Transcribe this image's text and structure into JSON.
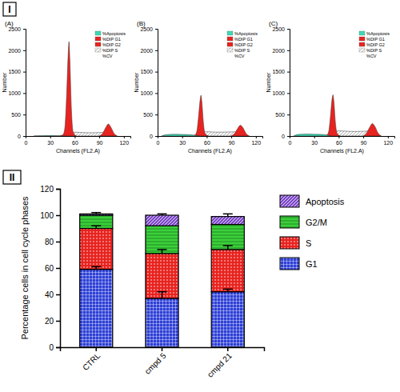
{
  "panel_labels": [
    "I",
    "II"
  ],
  "chart_data": [
    {
      "type": "area",
      "title": "(A)",
      "xlabel": "Channels (FL2.A)",
      "ylabel": "Number",
      "xlim": [
        0,
        128
      ],
      "xticks": [
        0,
        30,
        60,
        90,
        120
      ],
      "ylim": [
        0,
        2500
      ],
      "yticks": [
        0,
        500,
        1000,
        1500,
        2000,
        2500
      ],
      "grid": false,
      "legend": "upper right",
      "series": [
        {
          "name": "%Apoptosis",
          "color": "#3ddbb5",
          "x": [
            10,
            20,
            30,
            40,
            45
          ],
          "values": [
            0,
            5,
            8,
            6,
            0
          ]
        },
        {
          "name": "%DIP G1",
          "color": "#e8231f",
          "x": [
            42,
            46,
            48,
            50,
            52,
            53,
            54,
            56,
            58,
            62
          ],
          "values": [
            0,
            40,
            200,
            900,
            1900,
            2200,
            1800,
            600,
            100,
            0
          ]
        },
        {
          "name": "%DIP G2",
          "color": "#e8231f",
          "x": [
            90,
            94,
            98,
            101,
            104,
            108,
            112
          ],
          "values": [
            0,
            60,
            200,
            280,
            210,
            60,
            0
          ]
        },
        {
          "name": "%DIP S",
          "color": "#8a8a8a",
          "x": [
            52,
            56,
            60,
            70,
            80,
            90,
            100,
            104
          ],
          "values": [
            0,
            70,
            90,
            80,
            75,
            80,
            90,
            0
          ]
        },
        {
          "name": "%CV"
        }
      ]
    },
    {
      "type": "area",
      "title": "(B)",
      "xlabel": "Channels (FL2.A)",
      "ylabel": "Number",
      "xlim": [
        0,
        128
      ],
      "xticks": [
        0,
        30,
        60,
        90,
        120
      ],
      "ylim": [
        0,
        2500
      ],
      "yticks": [
        0,
        500,
        1000,
        1500,
        2000,
        2500
      ],
      "grid": false,
      "legend": "upper right",
      "series": [
        {
          "name": "%Apoptosis",
          "color": "#3ddbb5",
          "x": [
            5,
            10,
            20,
            30,
            40,
            45,
            50
          ],
          "values": [
            0,
            30,
            40,
            35,
            30,
            20,
            0
          ]
        },
        {
          "name": "%DIP G1",
          "color": "#e8231f",
          "x": [
            42,
            46,
            48,
            50,
            52,
            53,
            54,
            56,
            58,
            62
          ],
          "values": [
            0,
            30,
            120,
            450,
            850,
            950,
            800,
            300,
            60,
            0
          ]
        },
        {
          "name": "%DIP G2",
          "color": "#e8231f",
          "x": [
            90,
            94,
            98,
            101,
            104,
            108,
            112
          ],
          "values": [
            0,
            60,
            180,
            250,
            200,
            60,
            0
          ]
        },
        {
          "name": "%DIP S",
          "color": "#8a8a8a",
          "x": [
            52,
            56,
            60,
            70,
            80,
            90,
            100,
            104
          ],
          "values": [
            0,
            80,
            100,
            90,
            90,
            95,
            100,
            0
          ]
        },
        {
          "name": "%CV"
        }
      ]
    },
    {
      "type": "area",
      "title": "(C)",
      "xlabel": "Channels (FL2.A)",
      "ylabel": "Number",
      "xlim": [
        0,
        128
      ],
      "xticks": [
        0,
        30,
        60,
        90,
        120
      ],
      "ylim": [
        0,
        2500
      ],
      "yticks": [
        0,
        500,
        1000,
        1500,
        2000,
        2500
      ],
      "grid": false,
      "legend": "upper right",
      "series": [
        {
          "name": "%Apoptosis",
          "color": "#3ddbb5",
          "x": [
            5,
            10,
            20,
            30,
            40,
            45,
            50
          ],
          "values": [
            0,
            35,
            45,
            40,
            35,
            25,
            0
          ]
        },
        {
          "name": "%DIP G1",
          "color": "#e8231f",
          "x": [
            42,
            46,
            48,
            50,
            52,
            53,
            54,
            56,
            58,
            62
          ],
          "values": [
            0,
            30,
            130,
            480,
            880,
            960,
            820,
            300,
            60,
            0
          ]
        },
        {
          "name": "%DIP G2",
          "color": "#e8231f",
          "x": [
            90,
            94,
            98,
            101,
            104,
            108,
            112
          ],
          "values": [
            0,
            70,
            210,
            290,
            230,
            70,
            0
          ]
        },
        {
          "name": "%DIP S",
          "color": "#8a8a8a",
          "x": [
            52,
            56,
            60,
            70,
            80,
            90,
            100,
            104
          ],
          "values": [
            0,
            90,
            120,
            110,
            105,
            110,
            115,
            0
          ]
        },
        {
          "name": "%CV"
        }
      ]
    },
    {
      "type": "bar",
      "stacked": true,
      "legend": "right",
      "grid": false,
      "ylabel": "Percentage cells in cell cycle phases",
      "categories": [
        "CTRL",
        "cmpd 5",
        "cmpd 21"
      ],
      "ylim": [
        0,
        120
      ],
      "yticks": [
        0,
        20,
        40,
        60,
        80,
        100,
        120
      ],
      "series": [
        {
          "name": "G1",
          "color": "#2d3fd6",
          "values": [
            59,
            37,
            42
          ],
          "errors": [
            2,
            5,
            2
          ]
        },
        {
          "name": "S",
          "color": "#e8231f",
          "values": [
            31,
            34,
            32
          ],
          "errors": [
            2,
            3,
            3
          ]
        },
        {
          "name": "G2/M",
          "color": "#3ad13a",
          "values": [
            10,
            21,
            19
          ]
        },
        {
          "name": "Apoptosis",
          "color": "#7e48c9",
          "values": [
            1,
            8,
            6
          ],
          "errors": [
            1,
            1,
            2
          ]
        }
      ]
    }
  ]
}
